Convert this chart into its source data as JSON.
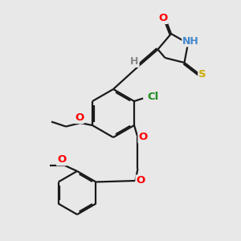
{
  "fig_bg": "#e8e8e8",
  "bond_color": "#1a1a1a",
  "bond_width": 1.6,
  "dbo": 0.06,
  "atom_colors": {
    "O": "#ff0000",
    "N": "#4488cc",
    "S": "#ccaa00",
    "Cl": "#228b22",
    "H_gray": "#888888"
  },
  "font_size": 9.5
}
